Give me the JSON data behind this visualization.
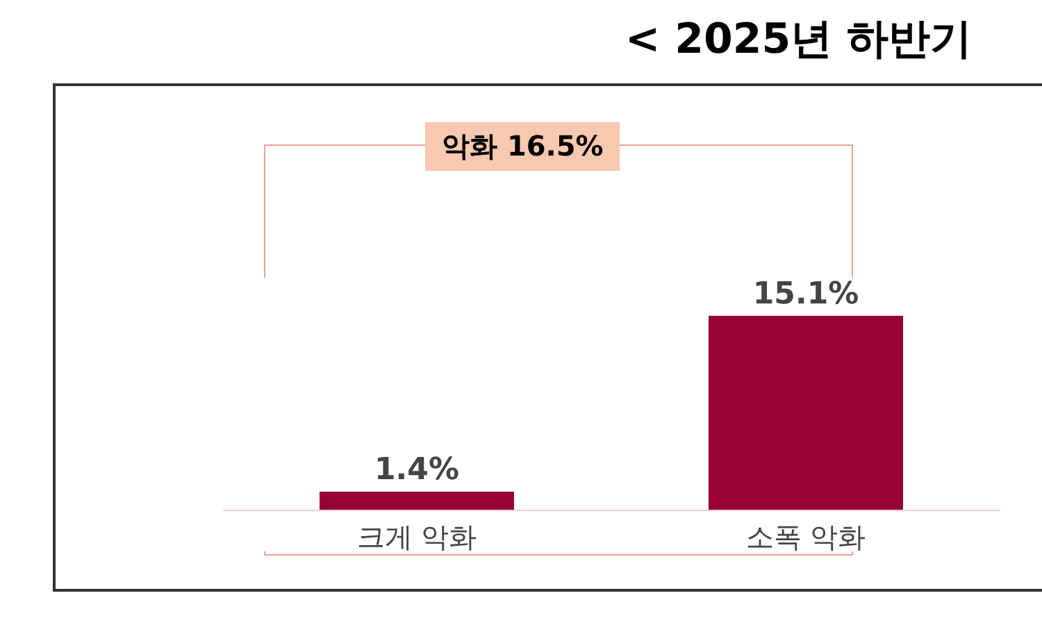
{
  "chart_data": {
    "type": "bar",
    "title": "< 2025년 하반기",
    "categories": [
      "크게 악화",
      "소폭 악화"
    ],
    "values": [
      1.4,
      15.1
    ],
    "value_labels": [
      "1.4%",
      "15.1%"
    ],
    "color": "#990033",
    "annotations": [
      "악화 16.5%"
    ]
  }
}
